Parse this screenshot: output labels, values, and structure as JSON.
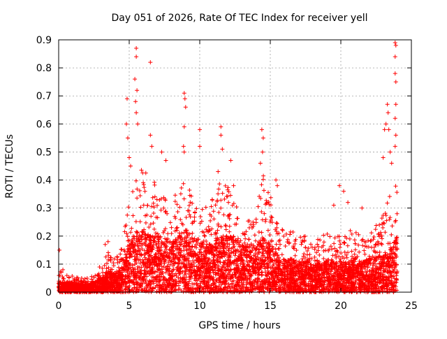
{
  "chart_data": {
    "type": "scatter",
    "title": "Day 051 of 2026, Rate Of TEC Index for receiver yell",
    "xlabel": "GPS time / hours",
    "ylabel": "ROTI / TECUs",
    "xlim": [
      0,
      25
    ],
    "ylim": [
      0,
      0.9
    ],
    "x_ticks": [
      "0",
      "5",
      "10",
      "15",
      "20",
      "25"
    ],
    "y_ticks": [
      "0",
      "0.1",
      "0.2",
      "0.3",
      "0.4",
      "0.5",
      "0.6",
      "0.7",
      "0.8",
      "0.9"
    ],
    "grid": true,
    "marker": "+",
    "series": [
      {
        "name": "ROTI",
        "color": "#ff0000",
        "envelope_x": [
          0,
          0.5,
          1,
          1.5,
          2,
          2.5,
          3,
          3.5,
          4,
          4.5,
          5,
          5.5,
          6,
          6.5,
          7,
          7.5,
          8,
          8.5,
          9,
          9.5,
          10,
          10.5,
          11,
          11.5,
          12,
          12.5,
          13,
          13.5,
          14,
          14.5,
          15,
          15.5,
          16,
          16.5,
          17,
          17.5,
          18,
          18.5,
          19,
          19.5,
          20,
          20.5,
          21,
          21.5,
          22,
          22.5,
          23,
          23.5,
          24
        ],
        "envelope_typical_max": [
          0.08,
          0.06,
          0.06,
          0.05,
          0.05,
          0.06,
          0.1,
          0.15,
          0.14,
          0.18,
          0.35,
          0.4,
          0.45,
          0.42,
          0.4,
          0.35,
          0.32,
          0.38,
          0.42,
          0.35,
          0.32,
          0.3,
          0.35,
          0.4,
          0.38,
          0.35,
          0.3,
          0.28,
          0.3,
          0.42,
          0.35,
          0.25,
          0.22,
          0.22,
          0.2,
          0.2,
          0.18,
          0.2,
          0.22,
          0.2,
          0.2,
          0.22,
          0.22,
          0.2,
          0.22,
          0.25,
          0.3,
          0.35,
          0.4
        ],
        "envelope_dense_max": [
          0.04,
          0.035,
          0.035,
          0.03,
          0.03,
          0.035,
          0.05,
          0.07,
          0.07,
          0.09,
          0.18,
          0.22,
          0.22,
          0.2,
          0.2,
          0.2,
          0.18,
          0.2,
          0.22,
          0.2,
          0.18,
          0.17,
          0.18,
          0.2,
          0.2,
          0.2,
          0.18,
          0.17,
          0.17,
          0.2,
          0.17,
          0.14,
          0.12,
          0.12,
          0.11,
          0.11,
          0.1,
          0.1,
          0.12,
          0.11,
          0.1,
          0.11,
          0.12,
          0.11,
          0.12,
          0.13,
          0.14,
          0.16,
          0.2
        ],
        "points_per_hour": 220,
        "spikes": [
          {
            "x": 0.05,
            "y": 0.15
          },
          {
            "x": 0.3,
            "y": 0.08
          },
          {
            "x": 3.3,
            "y": 0.17
          },
          {
            "x": 3.5,
            "y": 0.18
          },
          {
            "x": 4.8,
            "y": 0.6
          },
          {
            "x": 4.85,
            "y": 0.69
          },
          {
            "x": 4.9,
            "y": 0.55
          },
          {
            "x": 5.0,
            "y": 0.48
          },
          {
            "x": 5.1,
            "y": 0.45
          },
          {
            "x": 5.4,
            "y": 0.76
          },
          {
            "x": 5.45,
            "y": 0.68
          },
          {
            "x": 5.5,
            "y": 0.87
          },
          {
            "x": 5.5,
            "y": 0.84
          },
          {
            "x": 5.55,
            "y": 0.72
          },
          {
            "x": 5.5,
            "y": 0.64
          },
          {
            "x": 5.6,
            "y": 0.6
          },
          {
            "x": 6.5,
            "y": 0.82
          },
          {
            "x": 6.5,
            "y": 0.56
          },
          {
            "x": 6.6,
            "y": 0.52
          },
          {
            "x": 7.3,
            "y": 0.5
          },
          {
            "x": 7.6,
            "y": 0.47
          },
          {
            "x": 8.9,
            "y": 0.71
          },
          {
            "x": 8.95,
            "y": 0.69
          },
          {
            "x": 9.0,
            "y": 0.66
          },
          {
            "x": 8.9,
            "y": 0.59
          },
          {
            "x": 8.85,
            "y": 0.52
          },
          {
            "x": 8.9,
            "y": 0.5
          },
          {
            "x": 10.0,
            "y": 0.58
          },
          {
            "x": 10.0,
            "y": 0.52
          },
          {
            "x": 11.5,
            "y": 0.59
          },
          {
            "x": 11.5,
            "y": 0.56
          },
          {
            "x": 11.6,
            "y": 0.51
          },
          {
            "x": 11.3,
            "y": 0.43
          },
          {
            "x": 12.2,
            "y": 0.47
          },
          {
            "x": 12.4,
            "y": 0.38
          },
          {
            "x": 14.4,
            "y": 0.58
          },
          {
            "x": 14.5,
            "y": 0.55
          },
          {
            "x": 14.45,
            "y": 0.5
          },
          {
            "x": 14.3,
            "y": 0.46
          },
          {
            "x": 15.4,
            "y": 0.4
          },
          {
            "x": 15.5,
            "y": 0.38
          },
          {
            "x": 19.9,
            "y": 0.38
          },
          {
            "x": 20.2,
            "y": 0.36
          },
          {
            "x": 19.5,
            "y": 0.31
          },
          {
            "x": 20.5,
            "y": 0.32
          },
          {
            "x": 21.5,
            "y": 0.3
          },
          {
            "x": 23.0,
            "y": 0.48
          },
          {
            "x": 23.1,
            "y": 0.58
          },
          {
            "x": 23.2,
            "y": 0.6
          },
          {
            "x": 23.3,
            "y": 0.67
          },
          {
            "x": 23.35,
            "y": 0.64
          },
          {
            "x": 23.4,
            "y": 0.58
          },
          {
            "x": 23.5,
            "y": 0.5
          },
          {
            "x": 23.6,
            "y": 0.46
          },
          {
            "x": 23.85,
            "y": 0.89
          },
          {
            "x": 23.9,
            "y": 0.88
          },
          {
            "x": 23.85,
            "y": 0.84
          },
          {
            "x": 23.85,
            "y": 0.78
          },
          {
            "x": 23.9,
            "y": 0.75
          },
          {
            "x": 23.9,
            "y": 0.67
          },
          {
            "x": 23.85,
            "y": 0.62
          },
          {
            "x": 23.9,
            "y": 0.56
          },
          {
            "x": 23.85,
            "y": 0.52
          }
        ]
      }
    ]
  }
}
